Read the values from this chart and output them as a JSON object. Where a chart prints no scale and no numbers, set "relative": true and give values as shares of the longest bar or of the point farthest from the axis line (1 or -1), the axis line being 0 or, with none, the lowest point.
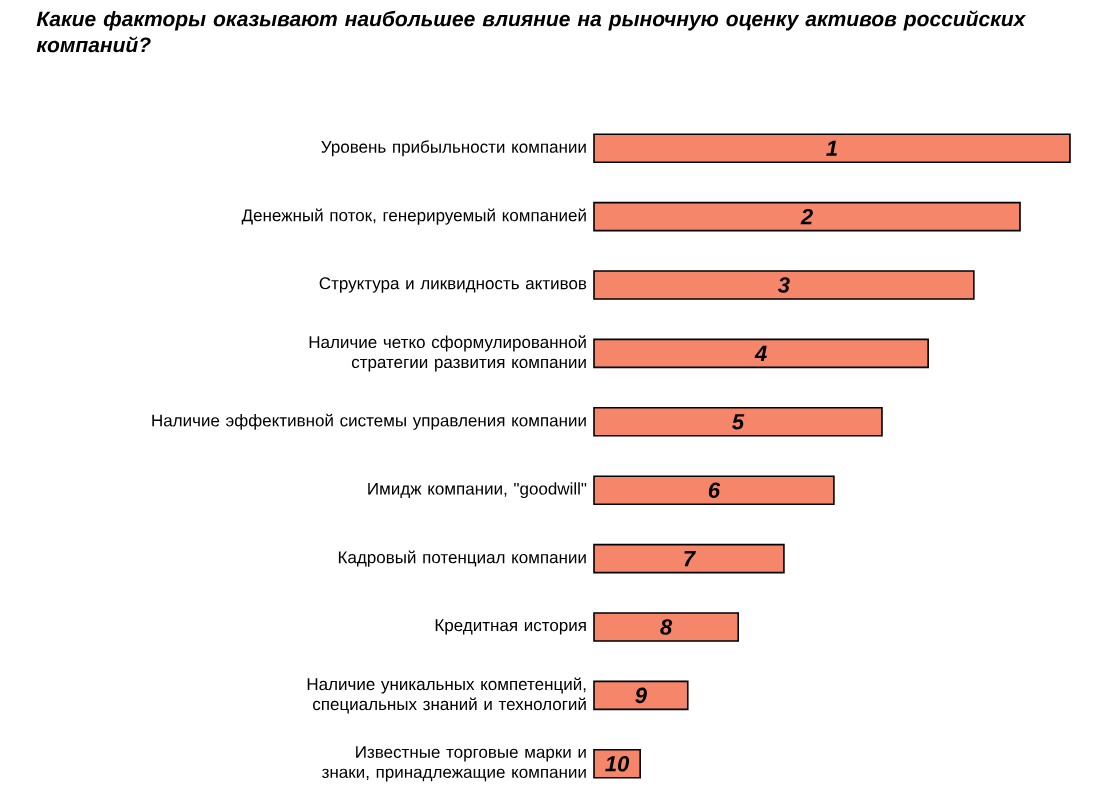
{
  "chart_data": {
    "type": "bar",
    "orientation": "horizontal",
    "relative": true,
    "title": "Какие факторы оказывают наибольшее влияние на рыночную оценку активов российских компаний?",
    "categories": [
      "Уровень прибыльности компании",
      "Денежный поток, генерируемый компанией",
      "Структура и ликвидность активов",
      "Наличие четко сформулированной стратегии развития компании",
      "Наличие эффективной системы управления компании",
      "Имидж компании, \"goodwill\"",
      "Кадровый потенциал компании",
      "Кредитная история",
      "Наличие уникальных компетенций, специальных знаний и технологий",
      "Известные торговые марки и знаки, принадлежащие компании"
    ],
    "values": [
      1,
      0.895,
      0.798,
      0.702,
      0.605,
      0.504,
      0.399,
      0.303,
      0.197,
      0.097
    ],
    "annotations": [
      "1",
      "2",
      "3",
      "4",
      "5",
      "6",
      "7",
      "8",
      "9",
      "10"
    ],
    "color": "#f5866a"
  }
}
